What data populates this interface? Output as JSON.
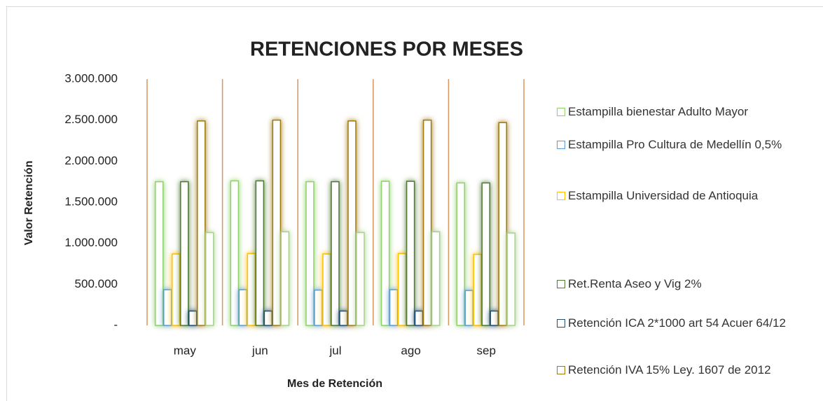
{
  "chart_data": {
    "type": "bar",
    "title": "RETENCIONES POR MESES",
    "x_label": "Mes de Retención",
    "y_label": "Valor Retención",
    "categories": [
      "may",
      "jun",
      "jul",
      "ago",
      "sep"
    ],
    "series": [
      {
        "name": "Estampilla bienestar Adulto Mayor",
        "color": "#8fd16a",
        "values": [
          1750000,
          1760000,
          1750000,
          1755000,
          1735000
        ]
      },
      {
        "name": "Estampilla Pro Cultura de Medellín 0,5%",
        "color": "#5b9bd5",
        "values": [
          435000,
          435000,
          430000,
          435000,
          425000
        ]
      },
      {
        "name": "Estampilla Universidad de Antioquia",
        "color": "#ffc000",
        "values": [
          870000,
          875000,
          870000,
          875000,
          865000
        ]
      },
      {
        "name": "Ret.Renta Aseo y Vig 2%",
        "color": "#4e7a34",
        "values": [
          1750000,
          1760000,
          1750000,
          1755000,
          1735000
        ]
      },
      {
        "name": "Retención ICA 2*1000 art 54 Acuer 64/12",
        "color": "#1f4e79",
        "values": [
          175000,
          175000,
          175000,
          175000,
          175000
        ]
      },
      {
        "name": "Retención IVA 15% Ley. 1607 de 2012",
        "color": "#a07a10",
        "values": [
          2490000,
          2500000,
          2490000,
          2500000,
          2470000
        ]
      },
      {
        "color": "#a9d18e",
        "values": [
          1130000,
          1140000,
          1130000,
          1140000,
          1125000
        ]
      }
    ],
    "ylim": [
      0,
      3000000
    ],
    "yticks": [
      {
        "value": 0,
        "label": "-"
      },
      {
        "value": 500000,
        "label": "500.000"
      },
      {
        "value": 1000000,
        "label": "1.000.000"
      },
      {
        "value": 1500000,
        "label": "1.500.000"
      },
      {
        "value": 2000000,
        "label": "2.000.000"
      },
      {
        "value": 2500000,
        "label": "2.500.000"
      },
      {
        "value": 3000000,
        "label": "3.000.000"
      }
    ],
    "separator_color": "#d9955f",
    "legend": "right"
  }
}
